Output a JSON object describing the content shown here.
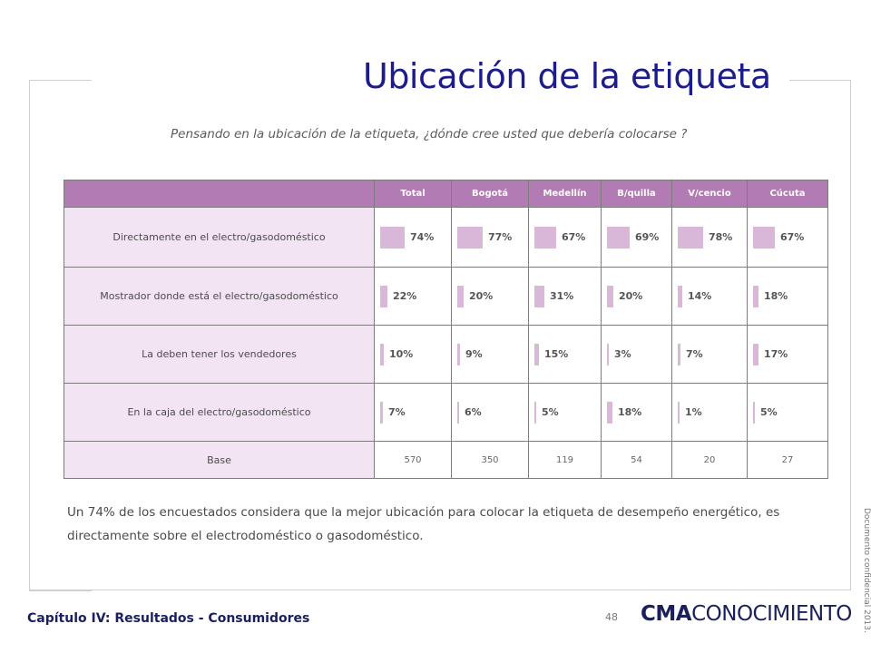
{
  "title": "Ubicación de la etiqueta",
  "question": "Pensando en la ubicación de la etiqueta, ¿dónde cree usted que debería colocarse ?",
  "table": {
    "columns": [
      "Total",
      "Bogotá",
      "Medellín",
      "B/quilla",
      "V/cencio",
      "Cúcuta"
    ],
    "rows": [
      {
        "label": "Directamente  en el electro/gasodoméstico",
        "values": [
          74,
          77,
          67,
          69,
          78,
          67
        ],
        "display": [
          "74%",
          "77%",
          "67%",
          "69%",
          "78%",
          "67%"
        ]
      },
      {
        "label": "Mostrador donde está el electro/gasodoméstico",
        "values": [
          22,
          20,
          31,
          20,
          14,
          18
        ],
        "display": [
          "22%",
          "20%",
          "31%",
          "20%",
          "14%",
          "18%"
        ]
      },
      {
        "label": "La deben tener los vendedores",
        "values": [
          10,
          9,
          15,
          3,
          7,
          17
        ],
        "display": [
          "10%",
          "9%",
          "15%",
          "3%",
          "7%",
          "17%"
        ]
      },
      {
        "label": "En la caja del electro/gasodoméstico",
        "values": [
          7,
          6,
          5,
          18,
          1,
          5
        ],
        "display": [
          "7%",
          "6%",
          "5%",
          "18%",
          "1%",
          "5%"
        ]
      }
    ],
    "base": {
      "label": "Base",
      "values": [
        "570",
        "350",
        "119",
        "54",
        "20",
        "27"
      ]
    },
    "bar_color": "#d8b7d9",
    "header_color": "#b27bb4",
    "label_bg_color": "#f2e4f2"
  },
  "summary": "Un 74% de los encuestados considera que la mejor ubicación para colocar la etiqueta de desempeño energético, es directamente sobre el electrodoméstico o gasodoméstico.",
  "footer": {
    "chapter": "Capítulo IV: Resultados - Consumidores",
    "page_number": "48",
    "logo_bold": "CMA",
    "logo_light": "CONOCIMIENTO",
    "confidential": "Documento confidencial 2013."
  },
  "colors": {
    "title": "#1c1c8c",
    "chapter": "#1c2060"
  }
}
